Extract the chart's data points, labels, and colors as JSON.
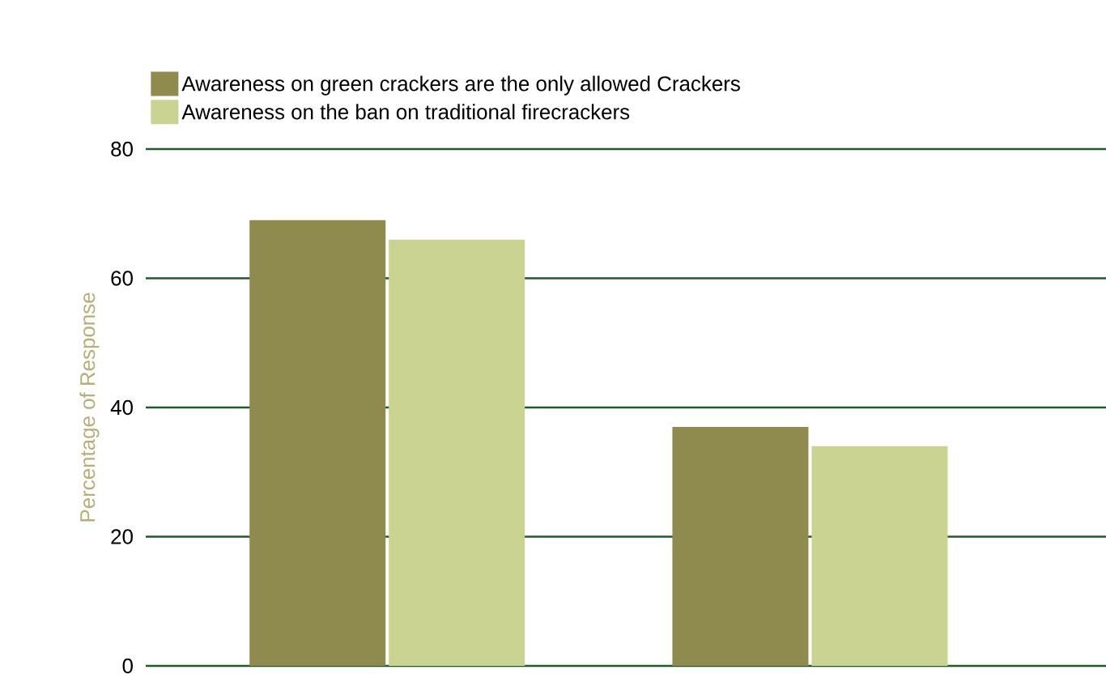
{
  "chart_data": {
    "type": "bar",
    "ylabel": "Percentage of Response",
    "categories": [
      null,
      null
    ],
    "series": [
      {
        "name": "Awareness on green crackers are the only allowed Crackers",
        "color": "#8f8a4e",
        "values": [
          69,
          37
        ]
      },
      {
        "name": "Awareness on the ban on traditional firecrackers",
        "color": "#cbd393",
        "values": [
          66,
          34
        ]
      }
    ],
    "ylim": [
      0,
      80
    ],
    "yticks": [
      0,
      20,
      40,
      60,
      80
    ],
    "grid": "y",
    "legend": "top",
    "tick_labels": "y"
  }
}
